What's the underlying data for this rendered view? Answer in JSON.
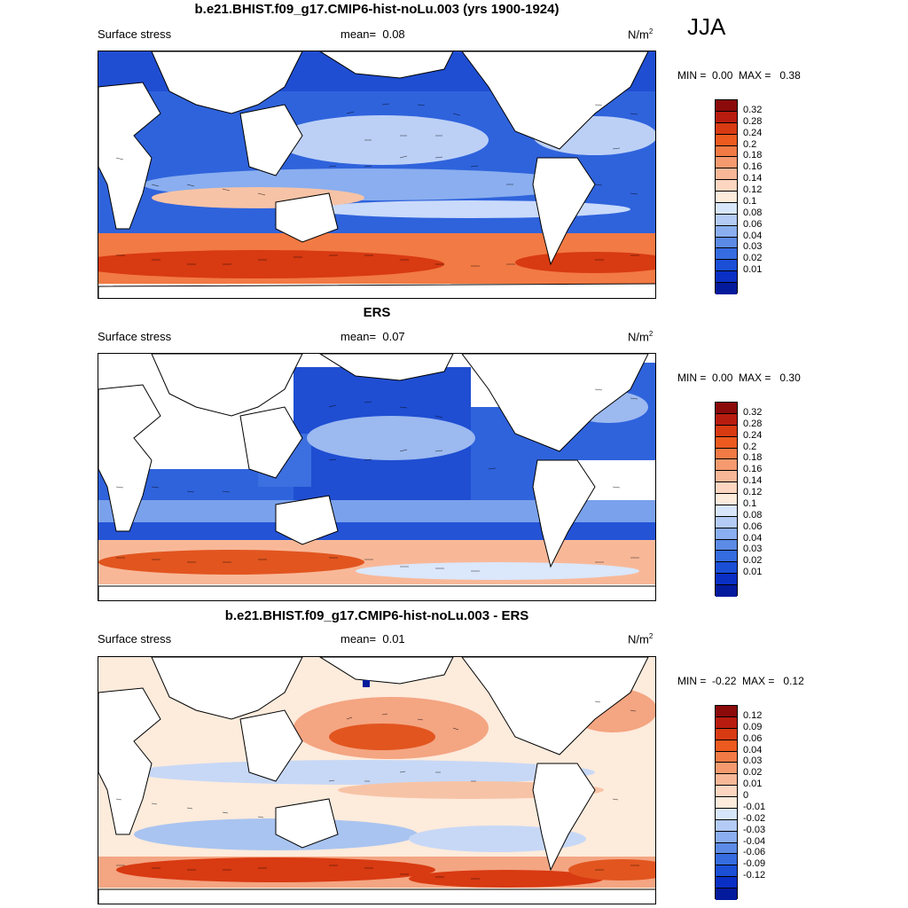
{
  "season": "JJA",
  "panels": [
    {
      "title": "b.e21.BHIST.f09_g17.CMIP6-hist-noLu.003 (yrs 1900-1924)",
      "variable": "Surface stress",
      "mean_label": "mean=",
      "mean_value": "0.08",
      "units": "N/m",
      "units_sup": "2",
      "min_label": "MIN =",
      "min_value": "0.00",
      "max_label": "MAX =",
      "max_value": "0.38",
      "colorbar_labels": [
        "0.32",
        "0.28",
        "0.24",
        "0.2",
        "0.18",
        "0.16",
        "0.14",
        "0.12",
        "0.1",
        "0.08",
        "0.06",
        "0.04",
        "0.03",
        "0.02",
        "0.01"
      ]
    },
    {
      "title": "ERS",
      "variable": "Surface stress",
      "mean_label": "mean=",
      "mean_value": "0.07",
      "units": "N/m",
      "units_sup": "2",
      "min_label": "MIN =",
      "min_value": "0.00",
      "max_label": "MAX =",
      "max_value": "0.30",
      "colorbar_labels": [
        "0.32",
        "0.28",
        "0.24",
        "0.2",
        "0.18",
        "0.16",
        "0.14",
        "0.12",
        "0.1",
        "0.08",
        "0.06",
        "0.04",
        "0.03",
        "0.02",
        "0.01"
      ]
    },
    {
      "title": "b.e21.BHIST.f09_g17.CMIP6-hist-noLu.003 - ERS",
      "variable": "Surface stress",
      "mean_label": "mean=",
      "mean_value": "0.01",
      "units": "N/m",
      "units_sup": "2",
      "min_label": "MIN =",
      "min_value": "-0.22",
      "max_label": "MAX =",
      "max_value": "0.12",
      "colorbar_labels": [
        "0.12",
        "0.09",
        "0.06",
        "0.04",
        "0.03",
        "0.02",
        "0.01",
        "0",
        "-0.01",
        "-0.02",
        "-0.03",
        "-0.04",
        "-0.06",
        "-0.09",
        "-0.12"
      ]
    }
  ],
  "colors": {
    "colorbar": [
      "#8b0a0a",
      "#b81c0f",
      "#d83a12",
      "#ec5a1f",
      "#f27a44",
      "#f59a6e",
      "#f8b898",
      "#fcd6c0",
      "#fdebdc",
      "#d8e6fb",
      "#b3cbf5",
      "#8aaeef",
      "#5c8be6",
      "#356cdf",
      "#1a4fd6",
      "#0a2fc4",
      "#041a9c"
    ],
    "ocean_blue": "#2f63dc",
    "ocean_mid": "#7aa1ec",
    "ocean_red": "#e2551f",
    "diff_pos": "#f4a582",
    "diff_neg": "#a9c4f0"
  }
}
